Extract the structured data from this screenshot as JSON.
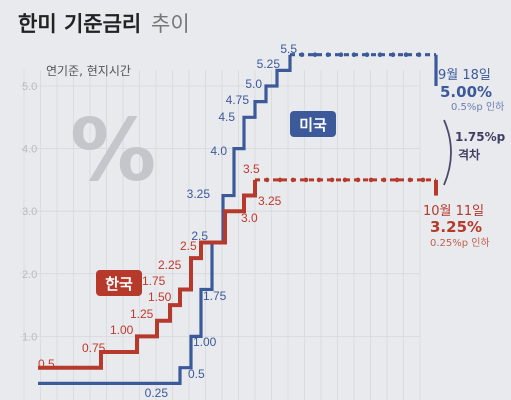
{
  "header": {
    "title_main": "한미 기준금리",
    "title_sub": "추이",
    "subtitle": "연기준, 현지시간"
  },
  "colors": {
    "us": "#3c5a99",
    "kr": "#b53a2c",
    "background": "#e9eaee",
    "grid": "#d6d8dd",
    "percent_watermark": "#c4c6cc"
  },
  "chart_data": {
    "type": "line",
    "step": true,
    "ylim": [
      0,
      5.5
    ],
    "y_ticks": [
      "1.0",
      "2.0",
      "3.0",
      "4.0",
      "5.0"
    ],
    "grid": true,
    "watermark": "%",
    "series": [
      {
        "name": "미국",
        "color": "#3c5a99",
        "rates": [
          0.25,
          0.5,
          1.0,
          1.75,
          2.5,
          3.25,
          4.0,
          4.5,
          4.75,
          5.0,
          5.25,
          5.5,
          5.0
        ],
        "labels": [
          "0.25",
          "0.5",
          "1.00",
          "1.75",
          "2.5",
          "3.25",
          "4.0",
          "4.5",
          "4.75",
          "5.0",
          "5.25",
          "5.5"
        ]
      },
      {
        "name": "한국",
        "color": "#b53a2c",
        "rates": [
          0.5,
          0.75,
          1.0,
          1.25,
          1.5,
          1.75,
          2.25,
          2.5,
          3.0,
          3.25,
          3.5,
          3.25
        ],
        "labels": [
          "0.5",
          "0.75",
          "1.00",
          "1.25",
          "1.50",
          "1.75",
          "2.25",
          "2.5",
          "3.0",
          "3.25",
          "3.5"
        ]
      }
    ],
    "annotations": {
      "us_latest": {
        "date": "9월 18일",
        "rate": "5.00%",
        "change": "0.5%p 인하"
      },
      "kr_latest": {
        "date": "10월 11일",
        "rate": "3.25%",
        "change": "0.25%p 인하"
      },
      "gap": {
        "value": "1.75%p",
        "label": "격차"
      }
    }
  }
}
